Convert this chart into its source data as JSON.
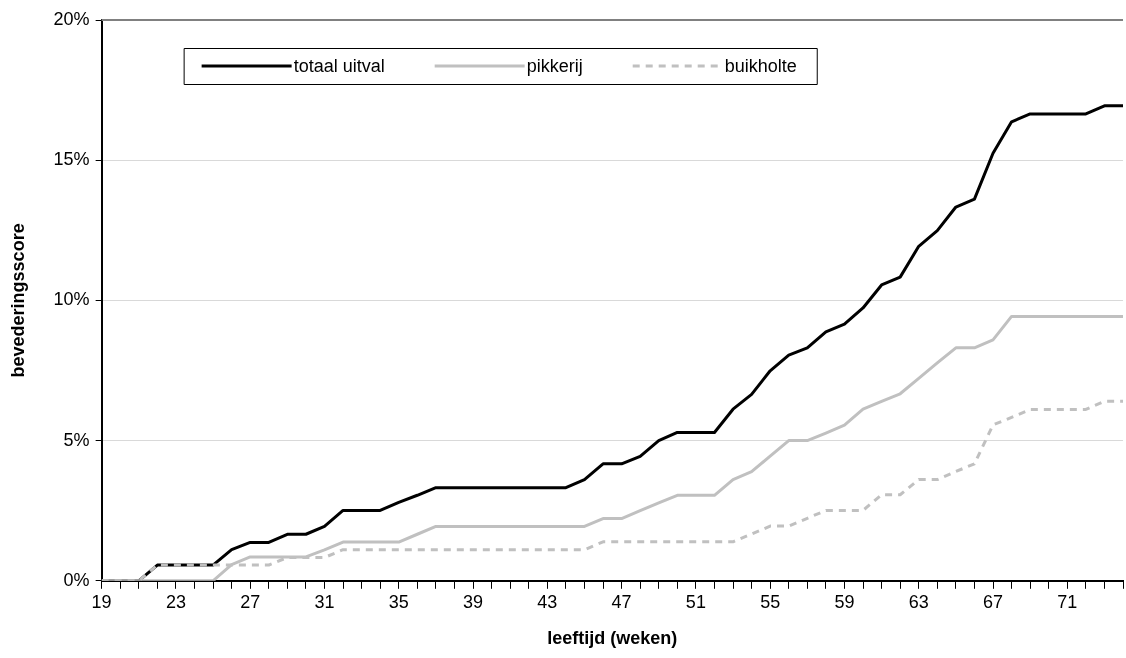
{
  "chart_data": {
    "type": "line",
    "xlabel": "leeftijd (weken)",
    "ylabel": "bevederingsscore",
    "x": [
      19,
      20,
      21,
      22,
      23,
      24,
      25,
      26,
      27,
      28,
      29,
      30,
      31,
      32,
      33,
      34,
      35,
      36,
      37,
      38,
      39,
      40,
      41,
      42,
      43,
      44,
      45,
      46,
      47,
      48,
      49,
      50,
      51,
      52,
      53,
      54,
      55,
      56,
      57,
      58,
      59,
      60,
      61,
      62,
      63,
      64,
      65,
      66,
      67,
      68,
      69,
      70,
      71,
      72,
      73,
      74
    ],
    "series": [
      {
        "name": "totaal uitval",
        "color": "#000000",
        "line_style": "solid",
        "values": [
          0,
          0,
          0,
          0.56,
          0.56,
          0.56,
          0.56,
          1.11,
          1.37,
          1.37,
          1.66,
          1.66,
          1.94,
          2.51,
          2.51,
          2.51,
          2.8,
          3.05,
          3.32,
          3.32,
          3.32,
          3.32,
          3.32,
          3.32,
          3.32,
          3.32,
          3.61,
          4.17,
          4.17,
          4.44,
          5.0,
          5.29,
          5.29,
          5.29,
          6.12,
          6.65,
          7.49,
          8.05,
          8.31,
          8.88,
          9.15,
          9.73,
          10.55,
          10.83,
          11.93,
          12.49,
          13.33,
          13.61,
          15.25,
          16.37,
          16.65,
          16.65,
          16.65,
          16.65,
          16.94,
          16.94
        ]
      },
      {
        "name": "pikkerij",
        "color": "#c0c0c0",
        "line_style": "solid",
        "values": [
          0,
          0,
          0,
          0,
          0,
          0,
          0,
          0.58,
          0.85,
          0.85,
          0.85,
          0.85,
          1.1,
          1.38,
          1.38,
          1.38,
          1.38,
          1.66,
          1.94,
          1.94,
          1.94,
          1.94,
          1.94,
          1.94,
          1.94,
          1.94,
          1.94,
          2.22,
          2.22,
          2.5,
          2.78,
          3.05,
          3.05,
          3.05,
          3.61,
          3.89,
          4.45,
          5.0,
          5.0,
          5.27,
          5.55,
          6.12,
          6.4,
          6.67,
          7.22,
          7.77,
          8.31,
          8.31,
          8.59,
          9.43,
          9.43,
          9.43,
          9.43,
          9.43,
          9.43,
          9.43
        ]
      },
      {
        "name": "buikholte",
        "color": "#c0c0c0",
        "line_style": "dashed",
        "values": [
          0,
          0,
          0,
          0.56,
          0.56,
          0.56,
          0.56,
          0.56,
          0.56,
          0.56,
          0.83,
          0.83,
          0.83,
          1.11,
          1.11,
          1.11,
          1.11,
          1.11,
          1.11,
          1.11,
          1.11,
          1.11,
          1.11,
          1.11,
          1.11,
          1.11,
          1.11,
          1.39,
          1.39,
          1.39,
          1.39,
          1.39,
          1.39,
          1.39,
          1.39,
          1.67,
          1.95,
          1.95,
          2.23,
          2.51,
          2.51,
          2.51,
          3.07,
          3.07,
          3.61,
          3.61,
          3.9,
          4.17,
          5.56,
          5.83,
          6.11,
          6.11,
          6.11,
          6.11,
          6.4,
          6.4
        ]
      }
    ],
    "xlim": [
      19,
      74
    ],
    "xticks": [
      19,
      {
        "value": 20,
        "label": null
      },
      {
        "value": 21,
        "label": null
      },
      {
        "value": 22,
        "label": null
      },
      23,
      {
        "value": 24,
        "label": null
      },
      {
        "value": 25,
        "label": null
      },
      {
        "value": 26,
        "label": null
      },
      27,
      {
        "value": 28,
        "label": null
      },
      {
        "value": 29,
        "label": null
      },
      {
        "value": 30,
        "label": null
      },
      31,
      {
        "value": 32,
        "label": null
      },
      {
        "value": 33,
        "label": null
      },
      {
        "value": 34,
        "label": null
      },
      35,
      {
        "value": 36,
        "label": null
      },
      {
        "value": 37,
        "label": null
      },
      {
        "value": 38,
        "label": null
      },
      39,
      {
        "value": 40,
        "label": null
      },
      {
        "value": 41,
        "label": null
      },
      {
        "value": 42,
        "label": null
      },
      43,
      {
        "value": 44,
        "label": null
      },
      {
        "value": 45,
        "label": null
      },
      {
        "value": 46,
        "label": null
      },
      47,
      {
        "value": 48,
        "label": null
      },
      {
        "value": 49,
        "label": null
      },
      {
        "value": 50,
        "label": null
      },
      51,
      {
        "value": 52,
        "label": null
      },
      {
        "value": 53,
        "label": null
      },
      {
        "value": 54,
        "label": null
      },
      55,
      {
        "value": 56,
        "label": null
      },
      {
        "value": 57,
        "label": null
      },
      {
        "value": 58,
        "label": null
      },
      59,
      {
        "value": 60,
        "label": null
      },
      {
        "value": 61,
        "label": null
      },
      {
        "value": 62,
        "label": null
      },
      63,
      {
        "value": 64,
        "label": null
      },
      {
        "value": 65,
        "label": null
      },
      {
        "value": 66,
        "label": null
      },
      67,
      {
        "value": 68,
        "label": null
      },
      {
        "value": 69,
        "label": null
      },
      {
        "value": 70,
        "label": null
      },
      71,
      {
        "value": 72,
        "label": null
      },
      {
        "value": 73,
        "label": null
      },
      {
        "value": 74,
        "label": null
      }
    ],
    "ylim": [
      0,
      20
    ],
    "yticks": [
      {
        "value": 0,
        "label": "0%"
      },
      {
        "value": 5,
        "label": "5%"
      },
      {
        "value": 10,
        "label": "10%"
      },
      {
        "value": 15,
        "label": "15%"
      },
      {
        "value": 20,
        "label": "20%"
      }
    ],
    "grid": "y",
    "legend": "top",
    "marker": "none"
  }
}
